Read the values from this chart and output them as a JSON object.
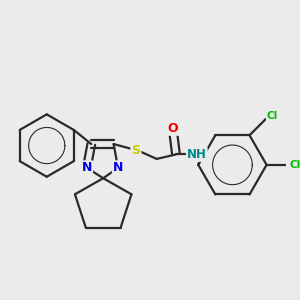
{
  "background_color": "#ebebeb",
  "bond_color": "#2a2a2a",
  "atom_colors": {
    "N": "#0000ee",
    "O": "#ee0000",
    "S": "#cccc00",
    "Cl": "#00bb00",
    "H": "#008888",
    "C": "#2a2a2a"
  },
  "figsize": [
    3.0,
    3.0
  ],
  "dpi": 100
}
